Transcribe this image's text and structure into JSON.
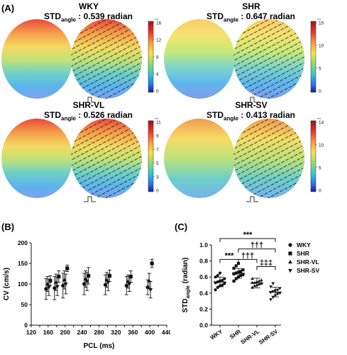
{
  "panel_a": {
    "label": "(A)",
    "maps": [
      {
        "name": "WKY",
        "std_prefix": "STD",
        "std_sub": "angle",
        "std_value": ": 0.539 radian",
        "scale_ticks": [
          "16",
          "12",
          "8",
          "4",
          "0"
        ],
        "scale_unit": "ms",
        "palette": "a"
      },
      {
        "name": "SHR",
        "std_prefix": "STD",
        "std_sub": "angle",
        "std_value": ": 0.647 radian",
        "scale_ticks": [
          "15",
          "10",
          "5",
          "0"
        ],
        "scale_unit": "ms",
        "palette": "b"
      },
      {
        "name": "SHR-VL",
        "std_prefix": "STD",
        "std_sub": "angle",
        "std_value": ": 0.526 radian",
        "scale_ticks": [
          "11",
          "9",
          "7",
          "5",
          "3",
          "0"
        ],
        "scale_unit": "ms",
        "palette": "a"
      },
      {
        "name": "SHR-SV",
        "std_prefix": "STD",
        "std_sub": "angle",
        "std_value": ": 0.413 radian",
        "scale_ticks": [
          "14",
          "10",
          "5",
          "0"
        ],
        "scale_unit": "ms",
        "palette": "c"
      }
    ]
  },
  "panel_b": {
    "label": "(B)",
    "chart_data": {
      "type": "scatter",
      "xlabel": "PCL (ms)",
      "ylabel": "CV (cm/s)",
      "xlim": [
        120,
        440
      ],
      "ylim": [
        0,
        200
      ],
      "xticks": [
        "120",
        "140",
        "160",
        "180",
        "200",
        "220",
        "240",
        "260",
        "280",
        "300",
        "320",
        "340",
        "360",
        "380",
        "400",
        "420",
        "440"
      ],
      "yticks": [
        "0",
        "50",
        "100",
        "150",
        "200"
      ],
      "series": [
        {
          "marker": "circle",
          "x": [
            160,
            180,
            200,
            250,
            300,
            350,
            400
          ],
          "y": [
            88,
            90,
            96,
            100,
            98,
            96,
            92
          ],
          "err": [
            25,
            28,
            30,
            26,
            24,
            22,
            18
          ]
        },
        {
          "marker": "square",
          "x": [
            160,
            180,
            200,
            250,
            300,
            350,
            400
          ],
          "y": [
            108,
            118,
            138,
            120,
            120,
            118,
            150
          ],
          "err": [
            12,
            14,
            8,
            20,
            14,
            14,
            10
          ]
        },
        {
          "marker": "triangle",
          "x": [
            160,
            180,
            200,
            250,
            300,
            350,
            400
          ],
          "y": [
            100,
            104,
            110,
            112,
            110,
            106,
            108
          ],
          "err": [
            18,
            20,
            22,
            20,
            18,
            16,
            18
          ]
        },
        {
          "marker": "tri-down",
          "x": [
            160,
            180,
            200,
            250,
            300,
            350,
            400
          ],
          "y": [
            92,
            94,
            100,
            106,
            104,
            100,
            86
          ],
          "err": [
            20,
            22,
            24,
            22,
            20,
            18,
            20
          ]
        }
      ]
    }
  },
  "panel_c": {
    "label": "(C)",
    "chart_data": {
      "type": "scatter",
      "ylabel_main": "STD",
      "ylabel_sub": "angle",
      "ylabel_tail": " (radian)",
      "ylim": [
        0,
        1.0
      ],
      "yticks": [
        "0.0",
        "0.2",
        "0.4",
        "0.6",
        "0.8",
        "1.0"
      ],
      "categories": [
        "WKY",
        "SHR",
        "SHR-VL",
        "SHR-SV"
      ],
      "means": [
        0.539,
        0.647,
        0.526,
        0.413
      ],
      "points": [
        [
          0.44,
          0.47,
          0.49,
          0.5,
          0.52,
          0.53,
          0.54,
          0.55,
          0.56,
          0.58,
          0.6,
          0.62,
          0.65
        ],
        [
          0.55,
          0.58,
          0.6,
          0.62,
          0.63,
          0.64,
          0.65,
          0.66,
          0.67,
          0.69,
          0.71,
          0.74,
          0.77
        ],
        [
          0.47,
          0.49,
          0.5,
          0.51,
          0.52,
          0.53,
          0.53,
          0.54,
          0.55,
          0.56,
          0.58
        ],
        [
          0.32,
          0.35,
          0.37,
          0.39,
          0.4,
          0.41,
          0.42,
          0.43,
          0.44,
          0.46,
          0.48,
          0.52
        ]
      ],
      "sig_labels": {
        "wky_shr": "***",
        "wky_sv": "***",
        "shr_vl": "†††",
        "shr_sv": "†††",
        "vl_sv": "‡‡‡"
      },
      "legend": [
        {
          "marker": "circle",
          "label": "WKY"
        },
        {
          "marker": "square",
          "label": "SHR"
        },
        {
          "marker": "triangle",
          "label": "SHR-VL"
        },
        {
          "marker": "tri-down",
          "label": "SHR-SV"
        }
      ]
    }
  }
}
